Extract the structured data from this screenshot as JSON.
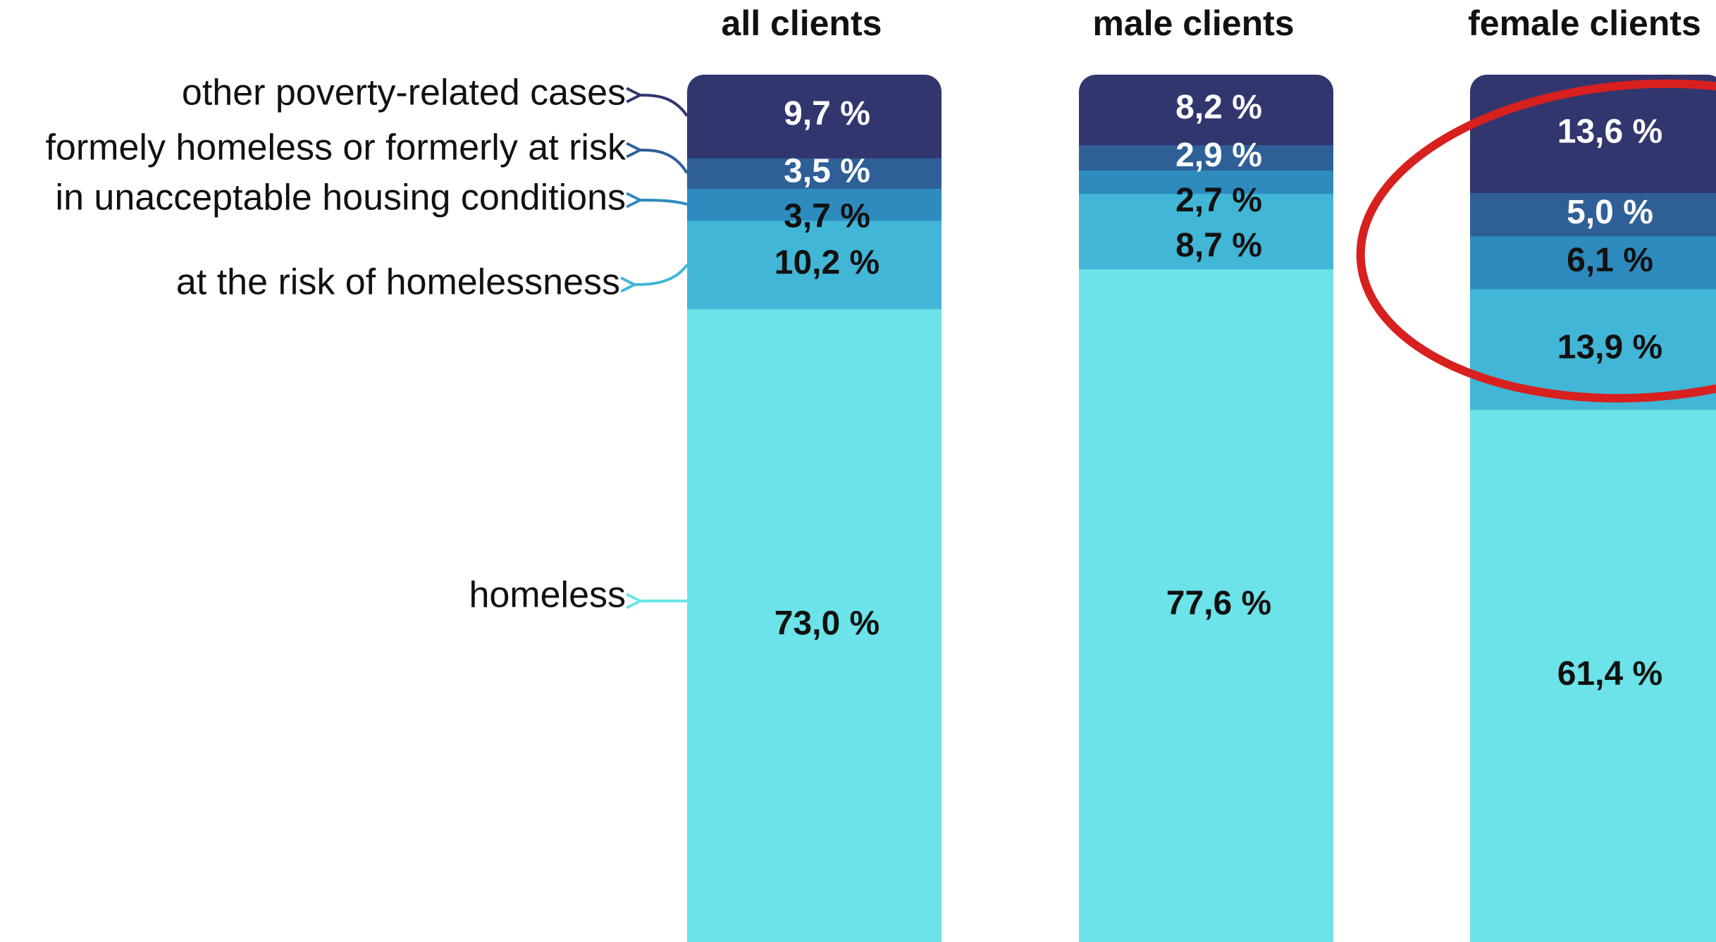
{
  "chart_data": {
    "type": "stacked_bar",
    "categories": [
      "all clients",
      "male clients",
      "female clients"
    ],
    "ylim": [
      0,
      100
    ],
    "series": [
      {
        "name": "homeless",
        "color": "#6be3e8",
        "values": [
          73.0,
          77.6,
          61.4
        ],
        "value_labels": [
          "73,0 %",
          "77,6 %",
          "61,4 %"
        ]
      },
      {
        "name": "at the risk of homelessness",
        "color": "#42b6d6",
        "values": [
          10.2,
          8.7,
          13.9
        ],
        "value_labels": [
          "10,2 %",
          "8,7 %",
          "13,9 %"
        ]
      },
      {
        "name": "in unacceptable housing conditions",
        "color": "#2d8bbd",
        "values": [
          3.7,
          2.7,
          6.1
        ],
        "value_labels": [
          "3,7 %",
          "2,7 %",
          "6,1 %"
        ]
      },
      {
        "name": "formely homeless or formerly at risk",
        "color": "#2e5f97",
        "values": [
          3.5,
          2.9,
          5.0
        ],
        "value_labels": [
          "3,5 %",
          "2,9 %",
          "5,0 %"
        ]
      },
      {
        "name": "other poverty-related cases",
        "color": "#32366e",
        "values": [
          9.7,
          8.2,
          13.6
        ],
        "value_labels": [
          "9,7 %",
          "8,2 %",
          "13,6 %"
        ]
      }
    ]
  }
}
